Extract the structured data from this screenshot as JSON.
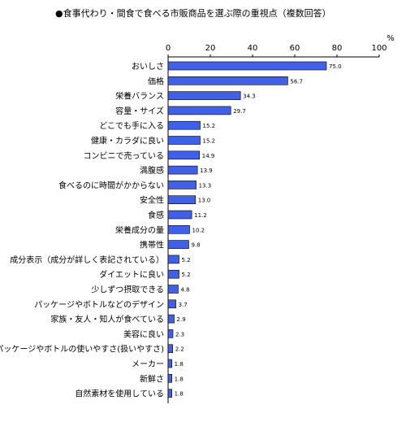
{
  "title": "●食事代わり・間食で食べる市販商品を選ぶ際の重視点（複数回答）",
  "chart_data": {
    "type": "bar",
    "orientation": "horizontal",
    "title": "●食事代わり・間食で食べる市販商品を選ぶ際の重視点（複数回答）",
    "unit": "%",
    "xlim": [
      0,
      100
    ],
    "ticks": [
      0,
      20,
      40,
      60,
      80,
      100
    ],
    "bar_color": "#4060e8",
    "grid": false,
    "categories": [
      "おいしさ",
      "価格",
      "栄養バランス",
      "容量・サイズ",
      "どこでも手に入る",
      "健康・カラダに良い",
      "コンビニで売っている",
      "満腹感",
      "食べるのに時間がかからない",
      "安全性",
      "食感",
      "栄養成分の量",
      "携帯性",
      "成分表示（成分が詳しく表記されている）",
      "ダイエットに良い",
      "少しずつ摂取できる",
      "パッケージやボトルなどのデザイン",
      "家族・友人・知人が食べている",
      "美容に良い",
      "パッケージやボトルの使いやすさ(扱いやすさ)",
      "メーカー",
      "新鮮さ",
      "自然素材を使用している"
    ],
    "values": [
      75.0,
      56.7,
      34.3,
      29.7,
      15.2,
      15.2,
      14.9,
      13.9,
      13.3,
      13.0,
      11.2,
      10.2,
      9.8,
      5.2,
      5.2,
      4.8,
      3.7,
      2.9,
      2.3,
      2.2,
      1.8,
      1.8,
      1.8
    ],
    "value_labels": [
      "75.0",
      "56.7",
      "34.3",
      "29.7",
      "15.2",
      "15.2",
      "14.9",
      "13.9",
      "13.3",
      "13.0",
      "11.2",
      "10.2",
      "9.8",
      "5.2",
      "5.2",
      "4.8",
      "3.7",
      "2.9",
      "2.3",
      "2.2",
      "1.8",
      "1.8",
      "1.8"
    ]
  }
}
